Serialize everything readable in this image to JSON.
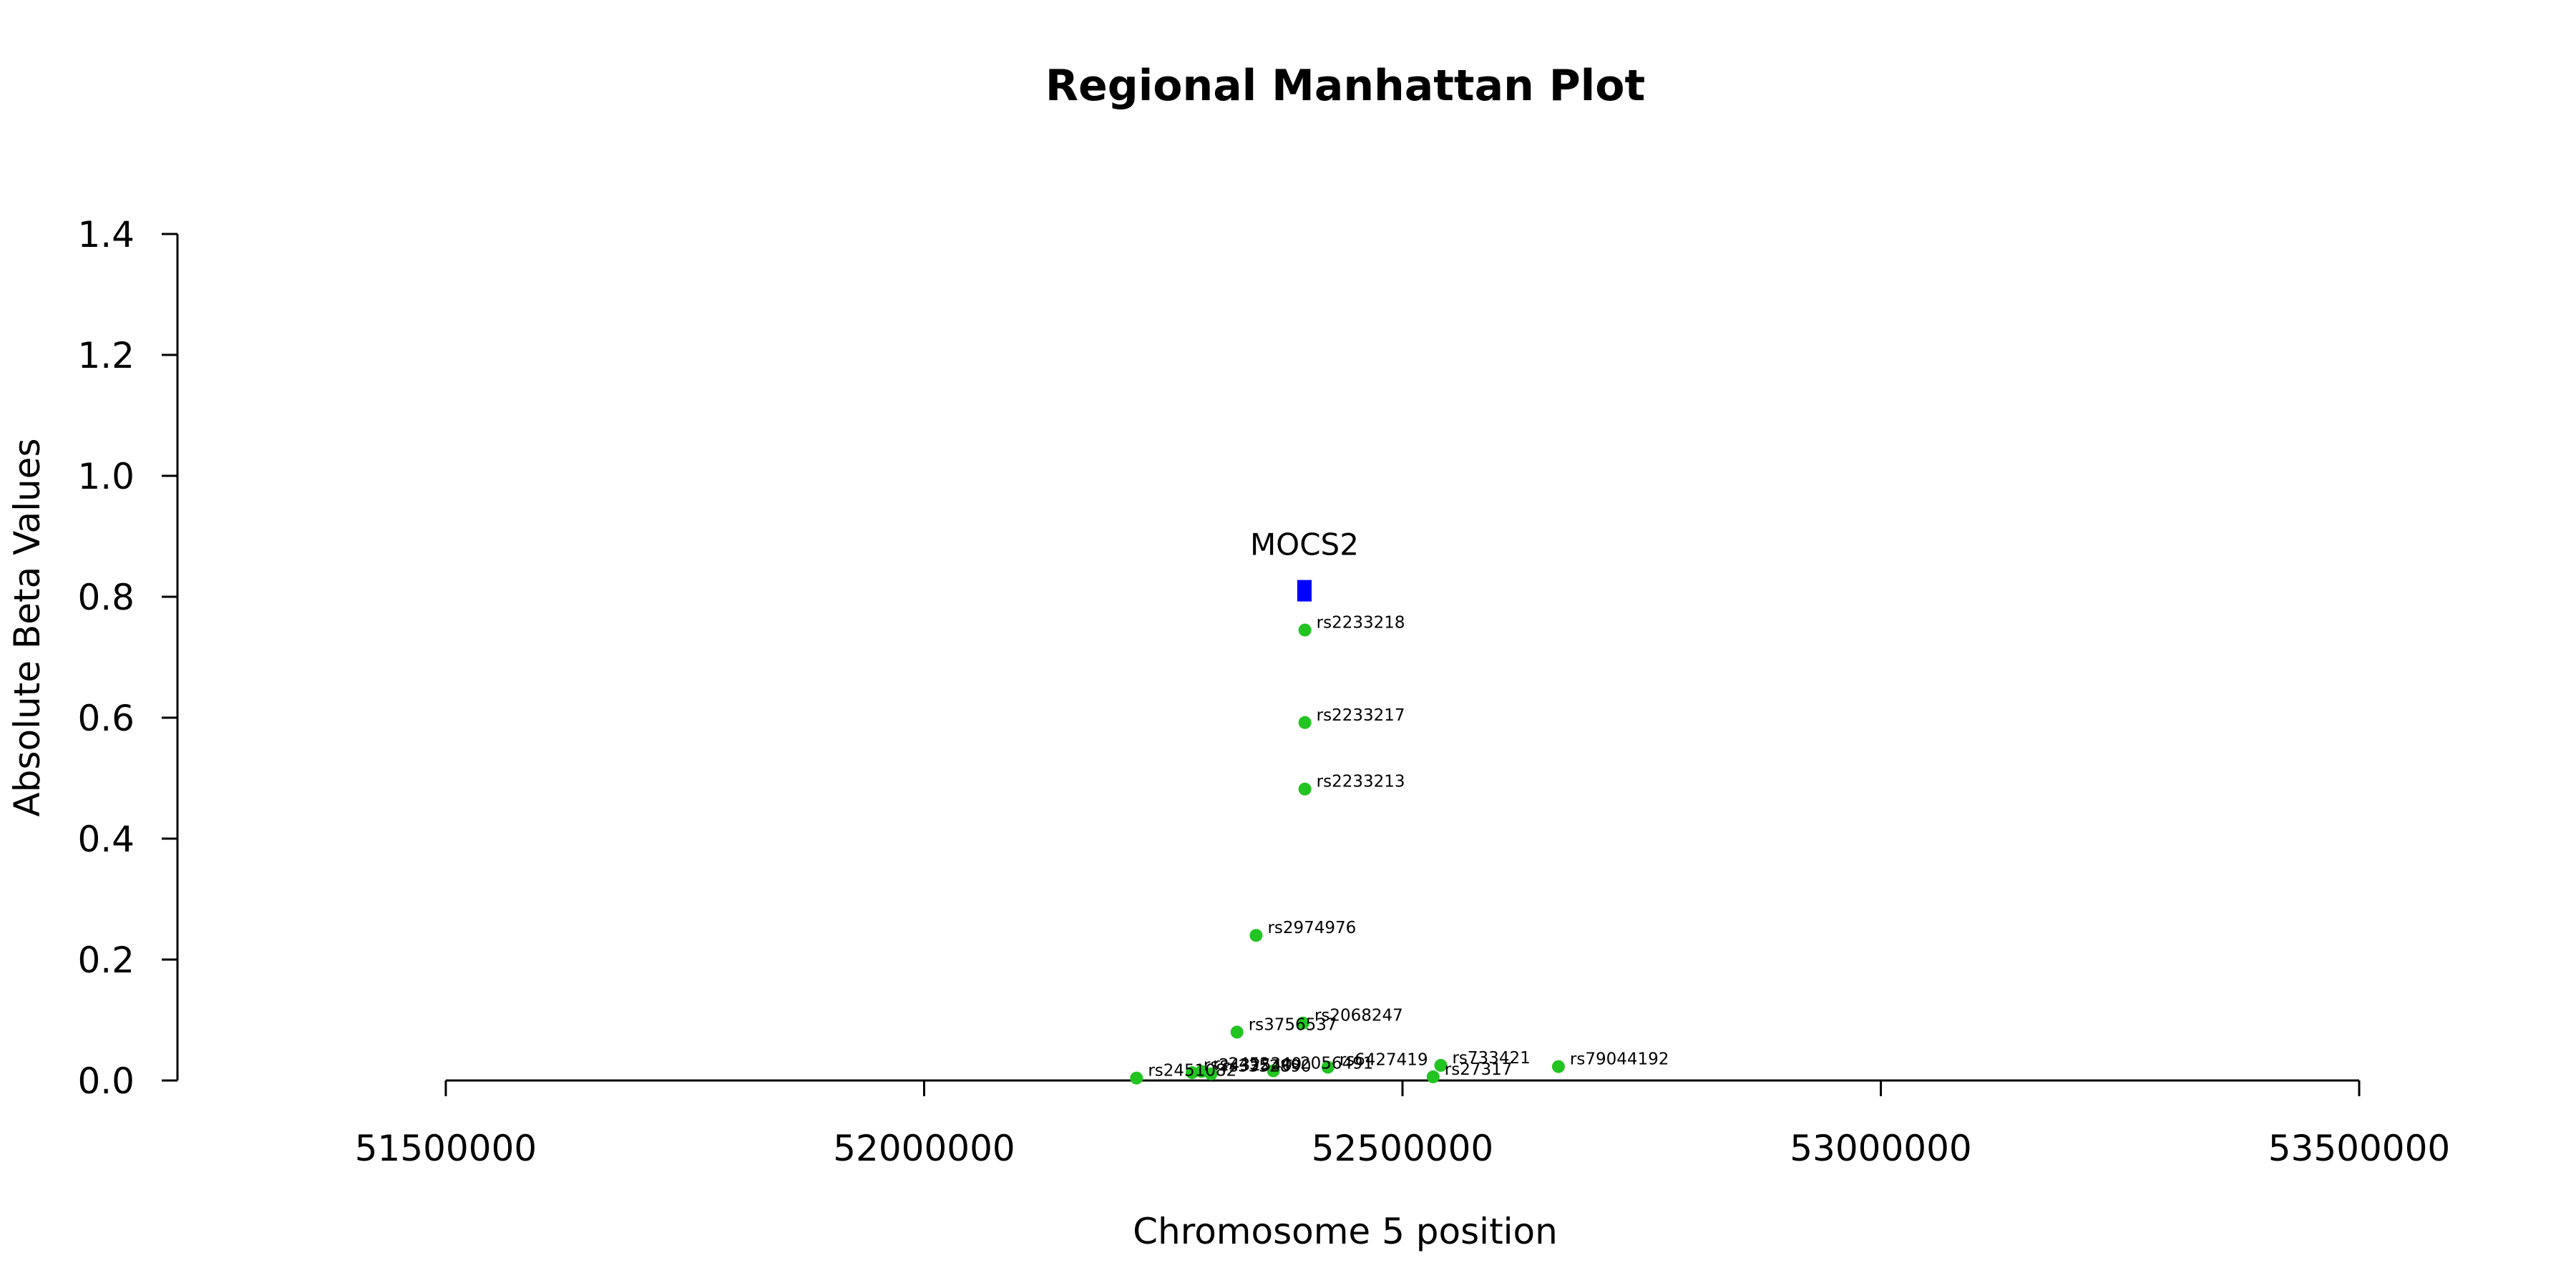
{
  "chart_data": {
    "type": "scatter",
    "title": "Regional Manhattan Plot",
    "xlabel": "Chromosome 5 position",
    "ylabel": "Absolute Beta Values",
    "xlim": [
      51220000,
      53650000
    ],
    "ylim": [
      0,
      1.4
    ],
    "x_ticks": [
      51500000,
      52000000,
      52500000,
      53000000,
      53500000
    ],
    "y_ticks": [
      0.0,
      0.2,
      0.4,
      0.6,
      0.8,
      1.0,
      1.2,
      1.4
    ],
    "x_tick_labels": [
      "51500000",
      "52000000",
      "52500000",
      "53000000",
      "53500000"
    ],
    "y_tick_labels": [
      "0.0",
      "0.2",
      "0.4",
      "0.6",
      "0.8",
      "1.0",
      "1.2",
      "1.4"
    ],
    "grid": false,
    "point_color": "#22c422",
    "gene_color": "#0000ff",
    "genes": [
      {
        "name": "MOCS2",
        "x_start": 52390000,
        "x_end": 52405000,
        "y": 0.81
      }
    ],
    "points": [
      {
        "label": "rs2233218",
        "x": 52398000,
        "y": 0.745
      },
      {
        "label": "rs2233217",
        "x": 52398000,
        "y": 0.592
      },
      {
        "label": "rs2233213",
        "x": 52398000,
        "y": 0.482
      },
      {
        "label": "rs2974976",
        "x": 52347000,
        "y": 0.24
      },
      {
        "label": "rs2068247",
        "x": 52396000,
        "y": 0.095
      },
      {
        "label": "rs3756537",
        "x": 52327000,
        "y": 0.08
      },
      {
        "label": "rs733421",
        "x": 52540000,
        "y": 0.025
      },
      {
        "label": "rs79044192",
        "x": 52663000,
        "y": 0.023
      },
      {
        "label": "rs6427419",
        "x": 52422000,
        "y": 0.022
      },
      {
        "label": "rs2056491",
        "x": 52365000,
        "y": 0.016
      },
      {
        "label": "rs2452340",
        "x": 52290000,
        "y": 0.015
      },
      {
        "label": "rs2432540",
        "x": 52280000,
        "y": 0.013
      },
      {
        "label": "rs3352890",
        "x": 52300000,
        "y": 0.011
      },
      {
        "label": "rs27317",
        "x": 52532000,
        "y": 0.006
      },
      {
        "label": "rs2451082",
        "x": 52222000,
        "y": 0.004
      }
    ]
  }
}
